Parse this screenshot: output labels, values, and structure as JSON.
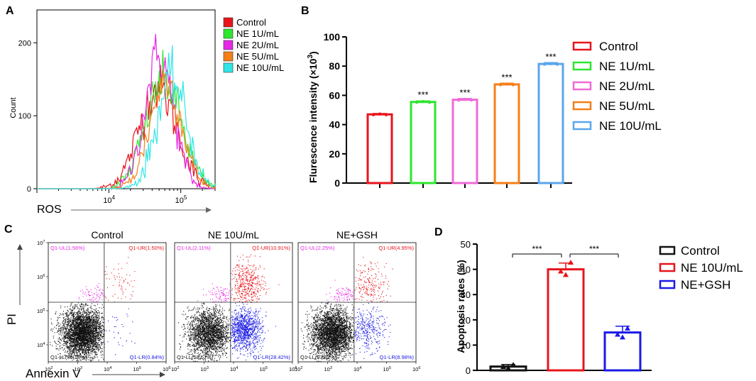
{
  "panels": {
    "A": "A",
    "B": "B",
    "C": "C",
    "D": "D"
  },
  "colors": {
    "control": "#e8141b",
    "ne1": "#2ee62e",
    "ne2": "#e628e6",
    "ne5": "#f57f17",
    "ne10": "#2fe6e6",
    "b_ne2": "#f06ad6",
    "b_ne10": "#5aa6ec",
    "dot_black": "#111111",
    "dot_red": "#e8141b",
    "dot_blue": "#1a1ae6",
    "dot_magenta": "#e628e6"
  },
  "chart_data": [
    {
      "id": "A",
      "type": "line",
      "title": "",
      "xlabel": "ROS",
      "ylabel": "Count",
      "xscale": "log",
      "xlim": [
        1000,
        300000
      ],
      "ylim": [
        0,
        245
      ],
      "x_ticks": [
        {
          "base": "10",
          "exp": "4",
          "value": 10000
        },
        {
          "base": "10",
          "exp": "5",
          "value": 100000
        }
      ],
      "y_ticks": [
        0,
        100,
        200
      ],
      "legend": [
        "Control",
        "NE 1U/mL",
        "NE 2U/mL",
        "NE 5U/mL",
        "NE 10U/mL"
      ],
      "series": [
        {
          "name": "Control",
          "color_key": "control",
          "peak_x": 48000,
          "peak_y": 138,
          "sigma": 0.26,
          "base_from": 13000,
          "base_level": 18
        },
        {
          "name": "NE 1U/mL",
          "color_key": "ne1",
          "peak_x": 58000,
          "peak_y": 148,
          "sigma": 0.25,
          "base_from": 16000,
          "base_level": 12
        },
        {
          "name": "NE 2U/mL",
          "color_key": "ne2",
          "peak_x": 50000,
          "peak_y": 182,
          "sigma": 0.2,
          "base_from": 18000,
          "base_level": 8
        },
        {
          "name": "NE 5U/mL",
          "color_key": "ne5",
          "peak_x": 62000,
          "peak_y": 148,
          "sigma": 0.22,
          "base_from": 20000,
          "base_level": 6
        },
        {
          "name": "NE 10U/mL",
          "color_key": "ne10",
          "peak_x": 75000,
          "peak_y": 150,
          "sigma": 0.21,
          "base_from": 24000,
          "base_level": 4
        }
      ]
    },
    {
      "id": "B",
      "type": "bar",
      "title": "",
      "ylabel": "Flurescence intensity (×10",
      "ylabel_sup": "3",
      "ylabel_end": ")",
      "ylim": [
        0,
        100
      ],
      "y_ticks": [
        0,
        20,
        40,
        60,
        80,
        100
      ],
      "categories": [
        "Control",
        "NE 1U/mL",
        "NE 2U/mL",
        "NE 5U/mL",
        "NE 10U/mL"
      ],
      "values": [
        47,
        55.5,
        57,
        67.5,
        81.5
      ],
      "errors": [
        0.6,
        0.7,
        0.8,
        0.8,
        0.9
      ],
      "significance": [
        "",
        "***",
        "***",
        "***",
        "***"
      ],
      "color_keys": [
        "control",
        "ne1",
        "b_ne2",
        "ne5",
        "b_ne10"
      ],
      "legend": [
        "Control",
        "NE 1U/mL",
        "NE 2U/mL",
        "NE 5U/mL",
        "NE 10U/mL"
      ]
    },
    {
      "id": "C",
      "type": "scatter",
      "xlabel": "Annexin V",
      "ylabel": "PI",
      "xscale": "log",
      "yscale": "log",
      "x_ticks_exp": [
        "2",
        "3",
        "4",
        "5",
        "6"
      ],
      "y_ticks_exp": [
        "4",
        "5",
        "6",
        "7"
      ],
      "tick_base": "10",
      "plots": [
        {
          "title": "Control",
          "quadrants": {
            "UL": "Q1-UL(1.56%)",
            "UR": "Q1-UR(1.50%)",
            "LL": "Q1-LL(96.10%)",
            "LR": "Q1-LR(0.84%)"
          },
          "fractions": {
            "UL": 0.0156,
            "UR": 0.015,
            "LL": 0.961,
            "LR": 0.0084
          }
        },
        {
          "title": "NE 10U/mL",
          "quadrants": {
            "UL": "Q1-UL(2.11%)",
            "UR": "Q1-UR(10.91%)",
            "LL": "Q1-LL(58.57%)",
            "LR": "Q1-LR(28.42%)"
          },
          "fractions": {
            "UL": 0.0211,
            "UR": 0.1091,
            "LL": 0.5857,
            "LR": 0.2842
          }
        },
        {
          "title": "NE+GSH",
          "quadrants": {
            "UL": "Q1-UL(2.25%)",
            "UR": "Q1-UR(4.95%)",
            "LL": "Q1-LL(83.82%)",
            "LR": "Q1-LR(8.98%)"
          },
          "fractions": {
            "UL": 0.0225,
            "UR": 0.0495,
            "LL": 0.8382,
            "LR": 0.0898
          }
        }
      ]
    },
    {
      "id": "D",
      "type": "bar",
      "ylabel": "Apoptosis rates (%)",
      "ylim": [
        0,
        50
      ],
      "y_ticks": [
        0,
        10,
        20,
        30,
        40,
        50
      ],
      "categories": [
        "Control",
        "NE 10U/mL",
        "NE+GSH"
      ],
      "values": [
        1.5,
        40,
        15
      ],
      "errors": [
        0.8,
        2.5,
        2.5
      ],
      "points": [
        [
          1.4,
          2.2,
          0.9
        ],
        [
          39.2,
          42.7,
          37.8
        ],
        [
          14.2,
          16.6,
          13.1
        ]
      ],
      "color_keys": [
        "dot_black",
        "dot_red",
        "dot_blue"
      ],
      "legend": [
        "Control",
        "NE 10U/mL",
        "NE+GSH"
      ],
      "brackets": [
        {
          "from": 0,
          "to": 1,
          "label": "***"
        },
        {
          "from": 1,
          "to": 2,
          "label": "***"
        }
      ]
    }
  ]
}
